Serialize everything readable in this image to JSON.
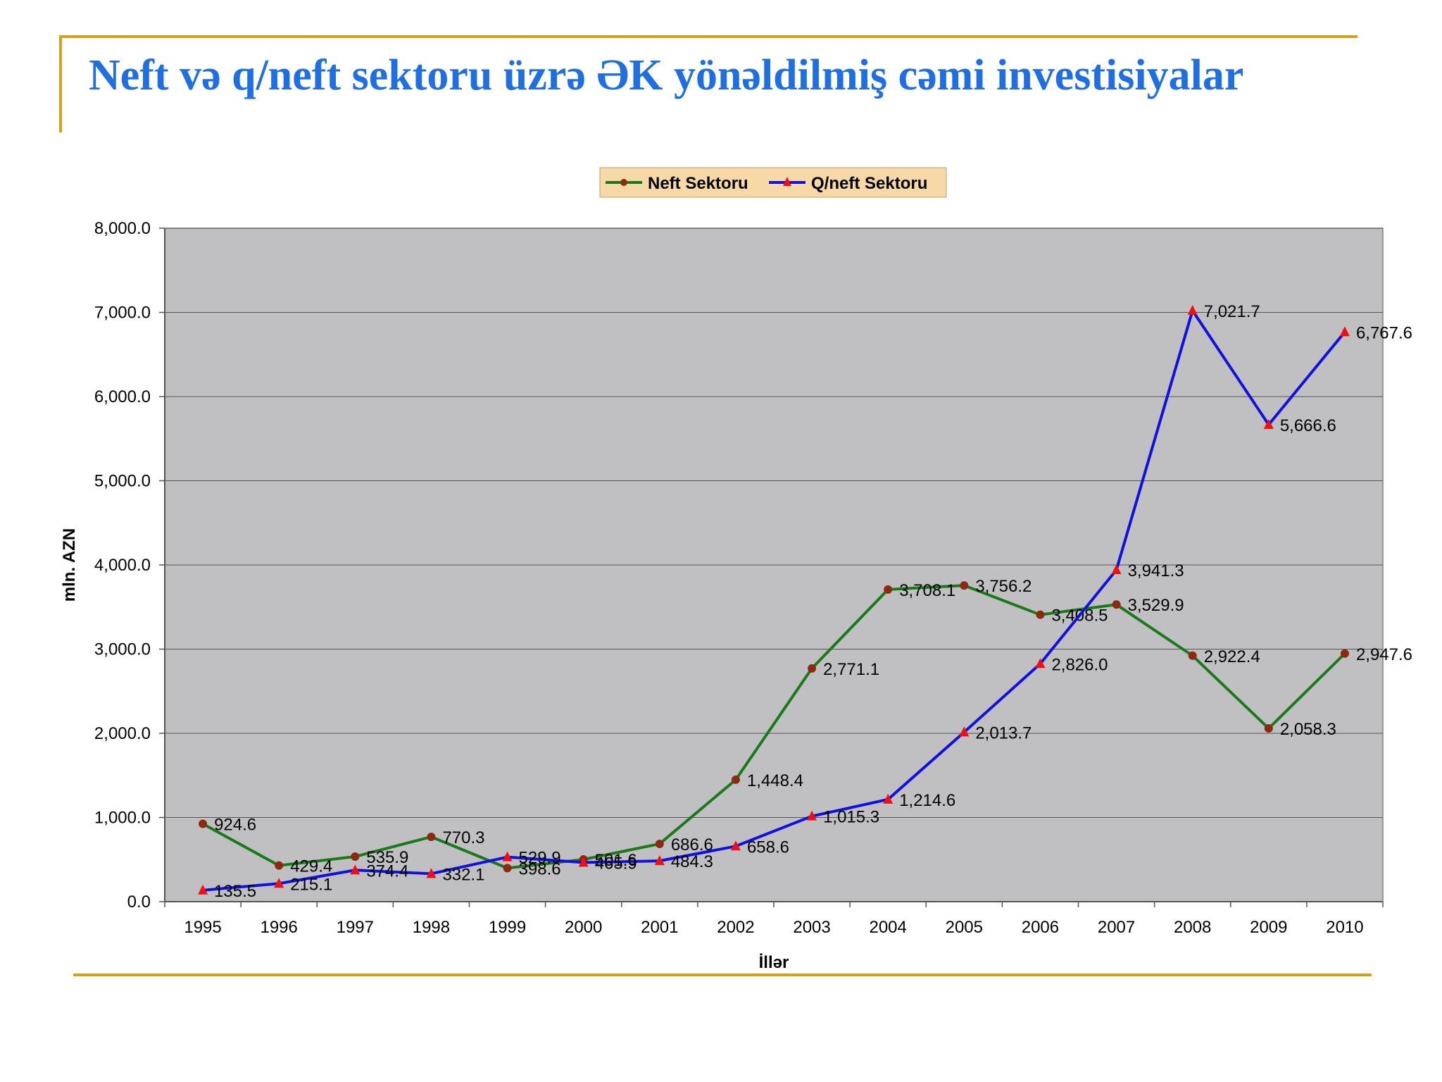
{
  "slide": {
    "title": "Neft və q/neft sektoru üzrə ƏK yönəldilmiş cəmi investisiyalar"
  },
  "colors": {
    "title": "#1f6fe0",
    "rule": "#d4a017",
    "plot_background": "#c0bfc2",
    "legend_background": "#f6d9a6",
    "neft_line": "#1a7a1a",
    "neft_marker": "#8b2a10",
    "qneft_line": "#1111dd",
    "qneft_marker": "#ee1111"
  },
  "chart_data": {
    "type": "line",
    "title": "",
    "xlabel": "İllər",
    "ylabel": "mln. AZN",
    "ylim": [
      0,
      8000
    ],
    "y_ticks": [
      "0.0",
      "1,000.0",
      "2,000.0",
      "3,000.0",
      "4,000.0",
      "5,000.0",
      "6,000.0",
      "7,000.0",
      "8,000.0"
    ],
    "grid": true,
    "legend_position": "top-center",
    "categories": [
      "1995",
      "1996",
      "1997",
      "1998",
      "1999",
      "2000",
      "2001",
      "2002",
      "2003",
      "2004",
      "2005",
      "2006",
      "2007",
      "2008",
      "2009",
      "2010"
    ],
    "series": [
      {
        "name": "Neft Sektoru",
        "marker": "circle",
        "values": [
          924.6,
          429.4,
          535.9,
          770.3,
          398.6,
          501.6,
          686.6,
          1448.4,
          2771.1,
          3708.1,
          3756.2,
          3408.5,
          3529.9,
          2922.4,
          2058.3,
          2947.6
        ],
        "labels": [
          "924.6",
          "429.4",
          "535.9",
          "770.3",
          "398.6",
          "501.6",
          "686.6",
          "1,448.4",
          "2,771.1",
          "3,708.1",
          "3,756.2",
          "3,408.5",
          "3,529.9",
          "2,922.4",
          "2,058.3",
          "2,947.6"
        ]
      },
      {
        "name": "Q/neft Sektoru",
        "marker": "triangle",
        "values": [
          135.5,
          215.1,
          374.4,
          332.1,
          529.9,
          465.9,
          484.3,
          658.6,
          1015.3,
          1214.6,
          2013.7,
          2826.0,
          3941.3,
          7021.7,
          5666.6,
          6767.6
        ],
        "labels": [
          "135.5",
          "215.1",
          "374.4",
          "332.1",
          "529.9",
          "465.9",
          "484.3",
          "658.6",
          "1,015.3",
          "1,214.6",
          "2,013.7",
          "2,826.0",
          "3,941.3",
          "7,021.7",
          "5,666.6",
          "6,767.6"
        ]
      }
    ]
  }
}
